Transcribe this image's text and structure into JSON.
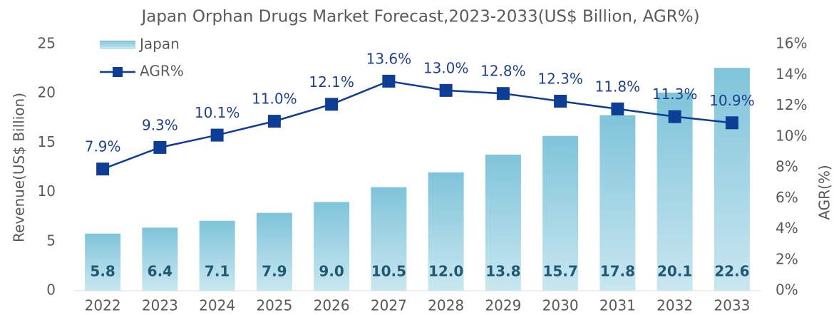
{
  "chart_data": {
    "type": "bar_line",
    "title": "Japan Orphan Drugs Market Forecast,2023-2033(US$ Billion, AGR%)",
    "y_label": "Revenue(US$ Billion)",
    "y2_label": "AGR(%)",
    "categories": [
      "2022",
      "2023",
      "2024",
      "2025",
      "2026",
      "2027",
      "2028",
      "2029",
      "2030",
      "2031",
      "2032",
      "2033"
    ],
    "series": [
      {
        "name": "Japan",
        "type": "bar",
        "color": "#7fc4da",
        "values": [
          5.8,
          6.4,
          7.1,
          7.9,
          9.0,
          10.5,
          12.0,
          13.8,
          15.7,
          17.8,
          20.1,
          22.6
        ],
        "value_labels": [
          "5.8",
          "6.4",
          "7.1",
          "7.9",
          "9.0",
          "10.5",
          "12.0",
          "13.8",
          "15.7",
          "17.8",
          "20.1",
          "22.6"
        ]
      },
      {
        "name": "AGR%",
        "type": "line",
        "axis": "y2",
        "color": "#0e3d96",
        "values": [
          7.9,
          9.3,
          10.1,
          11.0,
          12.1,
          13.6,
          13.0,
          12.8,
          12.3,
          11.8,
          11.3,
          10.9
        ],
        "value_labels": [
          "7.9%",
          "9.3%",
          "10.1%",
          "11.0%",
          "12.1%",
          "13.6%",
          "13.0%",
          "12.8%",
          "12.3%",
          "11.8%",
          "11.3%",
          "10.9%"
        ]
      }
    ],
    "ylim": [
      0,
      25
    ],
    "yticks": [
      0,
      5,
      10,
      15,
      20,
      25
    ],
    "y2lim": [
      0,
      16
    ],
    "y2ticks": [
      {
        "value": 0,
        "label": "0%"
      },
      {
        "value": 2,
        "label": "2%"
      },
      {
        "value": 4,
        "label": "4%"
      },
      {
        "value": 6,
        "label": "6%"
      },
      {
        "value": 8,
        "label": "8%"
      },
      {
        "value": 10,
        "label": "10%"
      },
      {
        "value": 12,
        "label": "12%"
      },
      {
        "value": 14,
        "label": "14%"
      },
      {
        "value": 16,
        "label": "16%"
      }
    ],
    "legend": "upper left"
  }
}
